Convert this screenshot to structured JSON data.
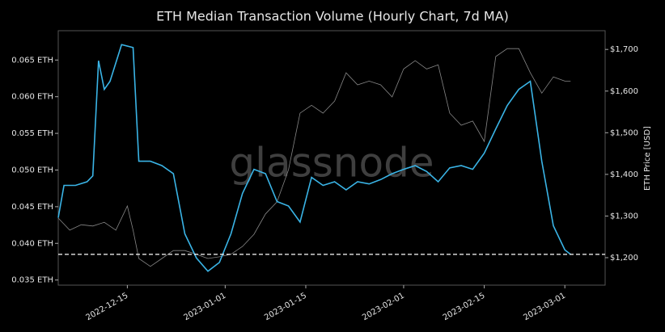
{
  "chart_data": {
    "type": "line",
    "title": "ETH Median Transaction Volume (Hourly Chart, 7d MA)",
    "watermark": "glassnode",
    "y2label": "ETH Price [USD]",
    "xlim": [
      "2022-12-03",
      "2023-03-08"
    ],
    "xticks": [
      "2022-12-15",
      "2023-01-01",
      "2023-01-15",
      "2023-02-01",
      "2023-02-15",
      "2023-03-01"
    ],
    "ylim": [
      0.0343,
      0.069
    ],
    "yticks": [
      {
        "value": 0.035,
        "label": "0.035 ETH"
      },
      {
        "value": 0.04,
        "label": "0.040 ETH"
      },
      {
        "value": 0.045,
        "label": "0.045 ETH"
      },
      {
        "value": 0.05,
        "label": "0.050 ETH"
      },
      {
        "value": 0.055,
        "label": "0.055 ETH"
      },
      {
        "value": 0.06,
        "label": "0.060 ETH"
      },
      {
        "value": 0.065,
        "label": "0.065 ETH"
      }
    ],
    "y2lim": [
      1134,
      1745
    ],
    "y2ticks": [
      {
        "value": 1200,
        "label": "$1,200"
      },
      {
        "value": 1300,
        "label": "$1,300"
      },
      {
        "value": 1400,
        "label": "$1,400"
      },
      {
        "value": 1500,
        "label": "$1,500"
      },
      {
        "value": 1600,
        "label": "$1,600"
      },
      {
        "value": 1700,
        "label": "$1,700"
      }
    ],
    "hline": 0.0385,
    "series": [
      {
        "color": "#888888",
        "axis": "y2",
        "x": [
          "2022-12-03",
          "2022-12-05",
          "2022-12-07",
          "2022-12-09",
          "2022-12-11",
          "2022-12-13",
          "2022-12-15",
          "2022-12-16",
          "2022-12-17",
          "2022-12-19",
          "2022-12-21",
          "2022-12-23",
          "2022-12-25",
          "2022-12-27",
          "2022-12-29",
          "2022-12-31",
          "2023-01-02",
          "2023-01-04",
          "2023-01-06",
          "2023-01-08",
          "2023-01-10",
          "2023-01-12",
          "2023-01-14",
          "2023-01-16",
          "2023-01-18",
          "2023-01-20",
          "2023-01-22",
          "2023-01-24",
          "2023-01-26",
          "2023-01-28",
          "2023-01-30",
          "2023-02-01",
          "2023-02-03",
          "2023-02-05",
          "2023-02-07",
          "2023-02-09",
          "2023-02-11",
          "2023-02-13",
          "2023-02-15",
          "2023-02-17",
          "2023-02-19",
          "2023-02-21",
          "2023-02-23",
          "2023-02-25",
          "2023-02-27",
          "2023-03-01",
          "2023-03-02"
        ],
        "values": [
          1295,
          1266,
          1279,
          1276,
          1285,
          1266,
          1324,
          1266,
          1198,
          1179,
          1198,
          1217,
          1217,
          1208,
          1198,
          1202,
          1208,
          1227,
          1256,
          1305,
          1334,
          1411,
          1547,
          1566,
          1547,
          1576,
          1644,
          1615,
          1624,
          1615,
          1586,
          1653,
          1673,
          1653,
          1663,
          1547,
          1518,
          1528,
          1479,
          1683,
          1702,
          1702,
          1644,
          1595,
          1634,
          1624,
          1624
        ]
      },
      {
        "color": "#3ab4e6",
        "axis": "y",
        "x": [
          "2022-12-03",
          "2022-12-04",
          "2022-12-06",
          "2022-12-08",
          "2022-12-09",
          "2022-12-10",
          "2022-12-11",
          "2022-12-12",
          "2022-12-14",
          "2022-12-16",
          "2022-12-17",
          "2022-12-19",
          "2022-12-21",
          "2022-12-23",
          "2022-12-25",
          "2022-12-27",
          "2022-12-29",
          "2022-12-31",
          "2023-01-02",
          "2023-01-04",
          "2023-01-06",
          "2023-01-08",
          "2023-01-10",
          "2023-01-12",
          "2023-01-14",
          "2023-01-16",
          "2023-01-18",
          "2023-01-20",
          "2023-01-22",
          "2023-01-24",
          "2023-01-26",
          "2023-01-28",
          "2023-01-30",
          "2023-02-01",
          "2023-02-03",
          "2023-02-05",
          "2023-02-07",
          "2023-02-09",
          "2023-02-11",
          "2023-02-13",
          "2023-02-15",
          "2023-02-17",
          "2023-02-19",
          "2023-02-21",
          "2023-02-23",
          "2023-02-25",
          "2023-02-27",
          "2023-03-01",
          "2023-03-02"
        ],
        "values": [
          0.0435,
          0.0479,
          0.0479,
          0.0484,
          0.0492,
          0.0649,
          0.061,
          0.0621,
          0.0671,
          0.0667,
          0.0512,
          0.0512,
          0.0506,
          0.0495,
          0.0413,
          0.038,
          0.0362,
          0.0374,
          0.0413,
          0.0468,
          0.0501,
          0.0495,
          0.0457,
          0.0451,
          0.0429,
          0.049,
          0.0479,
          0.0484,
          0.0473,
          0.0484,
          0.0481,
          0.0487,
          0.0495,
          0.0501,
          0.0506,
          0.0498,
          0.0484,
          0.0503,
          0.0506,
          0.0501,
          0.0523,
          0.0556,
          0.0588,
          0.061,
          0.0621,
          0.0512,
          0.0424,
          0.0391,
          0.0385
        ]
      }
    ]
  }
}
